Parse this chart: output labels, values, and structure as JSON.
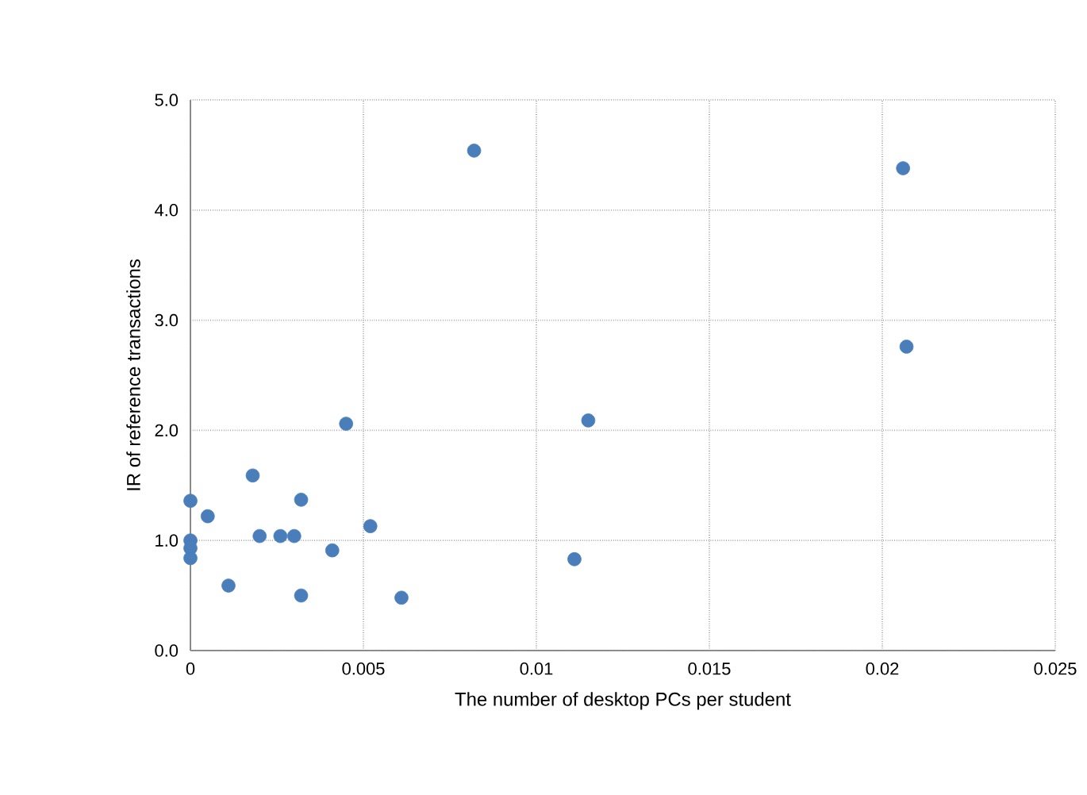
{
  "chart_data": {
    "type": "scatter",
    "xlabel": "The number of desktop PCs per student",
    "ylabel": "IR of reference transactions",
    "x": [
      0,
      0,
      0,
      0,
      0.0005,
      0.0011,
      0.0018,
      0.002,
      0.0026,
      0.003,
      0.0032,
      0.0032,
      0.0041,
      0.0045,
      0.0052,
      0.0061,
      0.0082,
      0.0111,
      0.0115,
      0.0206,
      0.0207
    ],
    "values": [
      1.36,
      1.0,
      0.93,
      0.84,
      1.22,
      0.59,
      1.59,
      1.04,
      1.04,
      1.04,
      0.5,
      1.37,
      0.91,
      2.06,
      1.13,
      0.48,
      4.54,
      0.83,
      2.09,
      4.38,
      2.76
    ],
    "color": "#4a7ebb",
    "marker": "circle",
    "grid": true,
    "xlim": [
      0,
      0.025
    ],
    "xticks": [
      0,
      0.005,
      0.01,
      0.015,
      0.02,
      0.025
    ],
    "ylim": [
      0,
      5
    ],
    "yticks": [
      {
        "value": 0,
        "label": "0.0"
      },
      {
        "value": 1,
        "label": "1.0"
      },
      {
        "value": 2,
        "label": "2.0"
      },
      {
        "value": 3,
        "label": "3.0"
      },
      {
        "value": 4,
        "label": "4.0"
      },
      {
        "value": 5,
        "label": "5.0"
      }
    ]
  }
}
